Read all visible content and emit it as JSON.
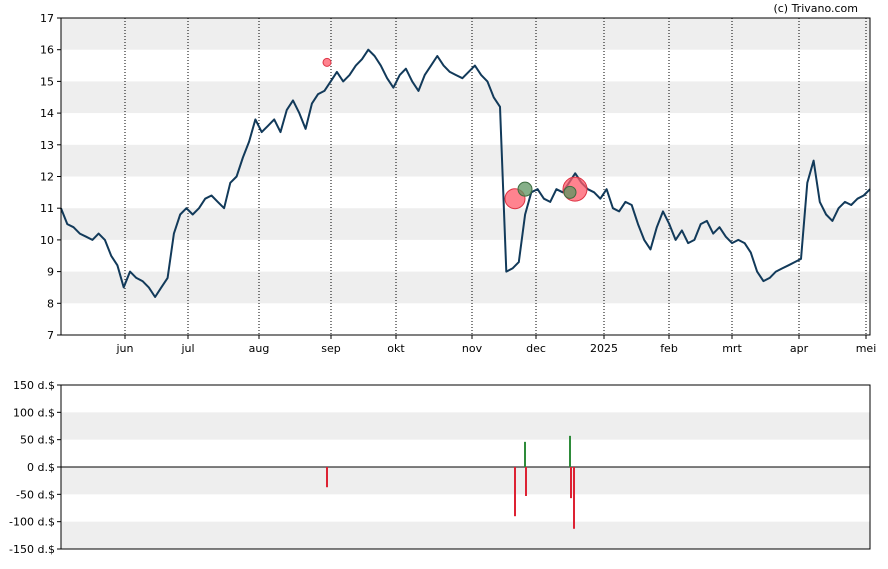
{
  "copyright": "(c) Trivano.com",
  "colors": {
    "price_line": "#123a5a",
    "band": "#eeeeee",
    "buy": "#2e8b3a",
    "sell": "#dd2233",
    "marker_sell": "#ff5a6a",
    "marker_buy": "#5c9460"
  },
  "chart_data": [
    {
      "type": "line",
      "title": "",
      "ylim": [
        7,
        17
      ],
      "y_ticks": [
        "7",
        "8",
        "9",
        "10",
        "11",
        "12",
        "13",
        "14",
        "15",
        "16",
        "17"
      ],
      "x_ticks": [
        "jun",
        "jul",
        "aug",
        "sep",
        "okt",
        "nov",
        "dec",
        "2025",
        "feb",
        "mrt",
        "apr",
        "mei"
      ],
      "grid": "alternating horizontal bands, dotted vertical lines at month starts",
      "series": [
        {
          "values": [
            11.0,
            10.5,
            10.4,
            10.2,
            10.1,
            10.0,
            10.2,
            10.0,
            9.5,
            9.2,
            8.5,
            9.0,
            8.8,
            8.7,
            8.5,
            8.2,
            8.5,
            8.8,
            10.2,
            10.8,
            11.0,
            10.8,
            11.0,
            11.3,
            11.4,
            11.2,
            11.0,
            11.8,
            12.0,
            12.6,
            13.1,
            13.8,
            13.4,
            13.6,
            13.8,
            13.4,
            14.1,
            14.4,
            14.0,
            13.5,
            14.3,
            14.6,
            14.7,
            15.0,
            15.3,
            15.0,
            15.2,
            15.5,
            15.7,
            16.0,
            15.8,
            15.5,
            15.1,
            14.8,
            15.2,
            15.4,
            15.0,
            14.7,
            15.2,
            15.5,
            15.8,
            15.5,
            15.3,
            15.2,
            15.1,
            15.3,
            15.5,
            15.2,
            15.0,
            14.5,
            14.2,
            9.0,
            9.1,
            9.3,
            10.8,
            11.5,
            11.6,
            11.3,
            11.2,
            11.6,
            11.5,
            11.8,
            12.1,
            11.8,
            11.6,
            11.5,
            11.3,
            11.6,
            11.0,
            10.9,
            11.2,
            11.1,
            10.5,
            10.0,
            9.7,
            10.4,
            10.9,
            10.5,
            10.0,
            10.3,
            9.9,
            10.0,
            10.5,
            10.6,
            10.2,
            10.4,
            10.1,
            9.9,
            10.0,
            9.9,
            9.6,
            9.0,
            8.7,
            8.8,
            9.0,
            9.1,
            9.2,
            9.3,
            9.4,
            11.8,
            12.5,
            11.2,
            10.8,
            10.6,
            11.0,
            11.2,
            11.1,
            11.3,
            11.4,
            11.6
          ]
        }
      ],
      "events": [
        {
          "type": "sell",
          "value": 15.6
        },
        {
          "type": "sell",
          "value": 11.3
        },
        {
          "type": "buy",
          "value": 11.6
        },
        {
          "type": "sell",
          "value": 11.6
        },
        {
          "type": "buy",
          "value": 11.5
        }
      ]
    },
    {
      "type": "bar",
      "title": "",
      "ylim": [
        -150,
        150
      ],
      "y_ticks": [
        "150 d.$",
        "100 d.$",
        "50 d.$",
        "0 d.$",
        "-50 d.$",
        "-100 d.$",
        "-150 d.$"
      ],
      "series": [
        {
          "type": "sell",
          "value": -37
        },
        {
          "type": "sell",
          "value": -90
        },
        {
          "type": "buy",
          "value": 46
        },
        {
          "type": "sell",
          "value": -53
        },
        {
          "type": "buy",
          "value": 57
        },
        {
          "type": "sell",
          "value": -57
        },
        {
          "type": "sell",
          "value": -113
        }
      ]
    }
  ]
}
